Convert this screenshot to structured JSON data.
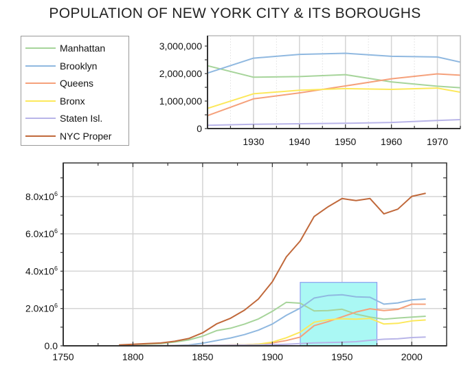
{
  "title": "POPULATION OF NEW YORK CITY & ITS BOROUGHS",
  "chart_data": {
    "type": "line",
    "title": "POPULATION OF NEW YORK CITY & ITS BOROUGHS",
    "x": [
      1790,
      1800,
      1810,
      1820,
      1830,
      1840,
      1850,
      1860,
      1870,
      1880,
      1890,
      1900,
      1910,
      1920,
      1930,
      1940,
      1950,
      1960,
      1970,
      1980,
      1990,
      2000,
      2010
    ],
    "series": [
      {
        "name": "Manhattan",
        "color": "#a6d49a",
        "values": [
          33131,
          60515,
          96373,
          123706,
          202589,
          312710,
          515547,
          813669,
          942292,
          1164673,
          1441216,
          1850093,
          2331542,
          2284103,
          1867312,
          1889924,
          1960101,
          1698281,
          1539233,
          1428285,
          1487536,
          1537195,
          1585873
        ]
      },
      {
        "name": "Brooklyn",
        "color": "#8fb8e0",
        "values": [
          4549,
          5740,
          8303,
          11187,
          20535,
          47613,
          138882,
          279122,
          419921,
          599495,
          838547,
          1166582,
          1634351,
          2018356,
          2560401,
          2698285,
          2738175,
          2627319,
          2602012,
          2230936,
          2300664,
          2465326,
          2504700
        ]
      },
      {
        "name": "Queens",
        "color": "#f5a07a",
        "values": [
          6159,
          6642,
          7444,
          8246,
          9049,
          14480,
          18593,
          32903,
          45468,
          56559,
          87050,
          152999,
          284041,
          469042,
          1079129,
          1297634,
          1550849,
          1809578,
          1986473,
          1891325,
          1951598,
          2229379,
          2230722
        ]
      },
      {
        "name": "Bronx",
        "color": "#fce85a",
        "values": [
          1781,
          1755,
          2267,
          2782,
          3023,
          5346,
          8032,
          23593,
          37393,
          51980,
          88908,
          200507,
          430980,
          732016,
          1265258,
          1394711,
          1451277,
          1424815,
          1471701,
          1168972,
          1203789,
          1332650,
          1385108
        ]
      },
      {
        "name": "Staten Isl.",
        "color": "#b8b4e8",
        "values": [
          3827,
          4563,
          5347,
          6135,
          7082,
          10965,
          15061,
          25492,
          33029,
          38991,
          51693,
          67021,
          85969,
          116531,
          158346,
          174441,
          191555,
          221991,
          295443,
          352121,
          378977,
          443728,
          468730
        ]
      },
      {
        "name": "NYC Proper",
        "color": "#c0683a",
        "values": [
          49447,
          79216,
          119734,
          152056,
          242278,
          391114,
          696115,
          1174779,
          1478103,
          1911698,
          2507414,
          3437202,
          4766883,
          5620048,
          6930446,
          7454995,
          7891957,
          7781984,
          7894862,
          7071639,
          7322564,
          8008278,
          8175133
        ]
      }
    ],
    "main": {
      "xlim": [
        1750,
        2025
      ],
      "ylim": [
        0,
        9800000
      ],
      "xticks": [
        {
          "v": 1750,
          "label": "1750"
        },
        {
          "v": 1800,
          "label": "1800"
        },
        {
          "v": 1850,
          "label": "1850"
        },
        {
          "v": 1900,
          "label": "1900"
        },
        {
          "v": 1950,
          "label": "1950"
        },
        {
          "v": 2000,
          "label": "2000"
        }
      ],
      "yticks": [
        {
          "v": 0,
          "base": "0.0",
          "exp": ""
        },
        {
          "v": 2000000,
          "base": "2.0x10",
          "exp": "6"
        },
        {
          "v": 4000000,
          "base": "4.0x10",
          "exp": "6"
        },
        {
          "v": 6000000,
          "base": "6.0x10",
          "exp": "6"
        },
        {
          "v": 8000000,
          "base": "8.0x10",
          "exp": "6"
        }
      ],
      "grid": true,
      "highlight": {
        "x": [
          1920,
          1975
        ],
        "y": [
          0,
          3400000
        ],
        "color": "#aaf8f4"
      }
    },
    "inset": {
      "xlim": [
        1920,
        1975
      ],
      "ylim": [
        0,
        3375000
      ],
      "xticks": [
        {
          "v": 1930,
          "label": "1930"
        },
        {
          "v": 1940,
          "label": "1940"
        },
        {
          "v": 1950,
          "label": "1950"
        },
        {
          "v": 1960,
          "label": "1960"
        },
        {
          "v": 1970,
          "label": "1970"
        }
      ],
      "yticks": [
        {
          "v": 0,
          "label": "0"
        },
        {
          "v": 1000000,
          "label": "1,000,000"
        },
        {
          "v": 2000000,
          "label": "2,000,000"
        },
        {
          "v": 3000000,
          "label": "3,000,000"
        }
      ],
      "grid": true
    },
    "legend_position": "top-left"
  }
}
